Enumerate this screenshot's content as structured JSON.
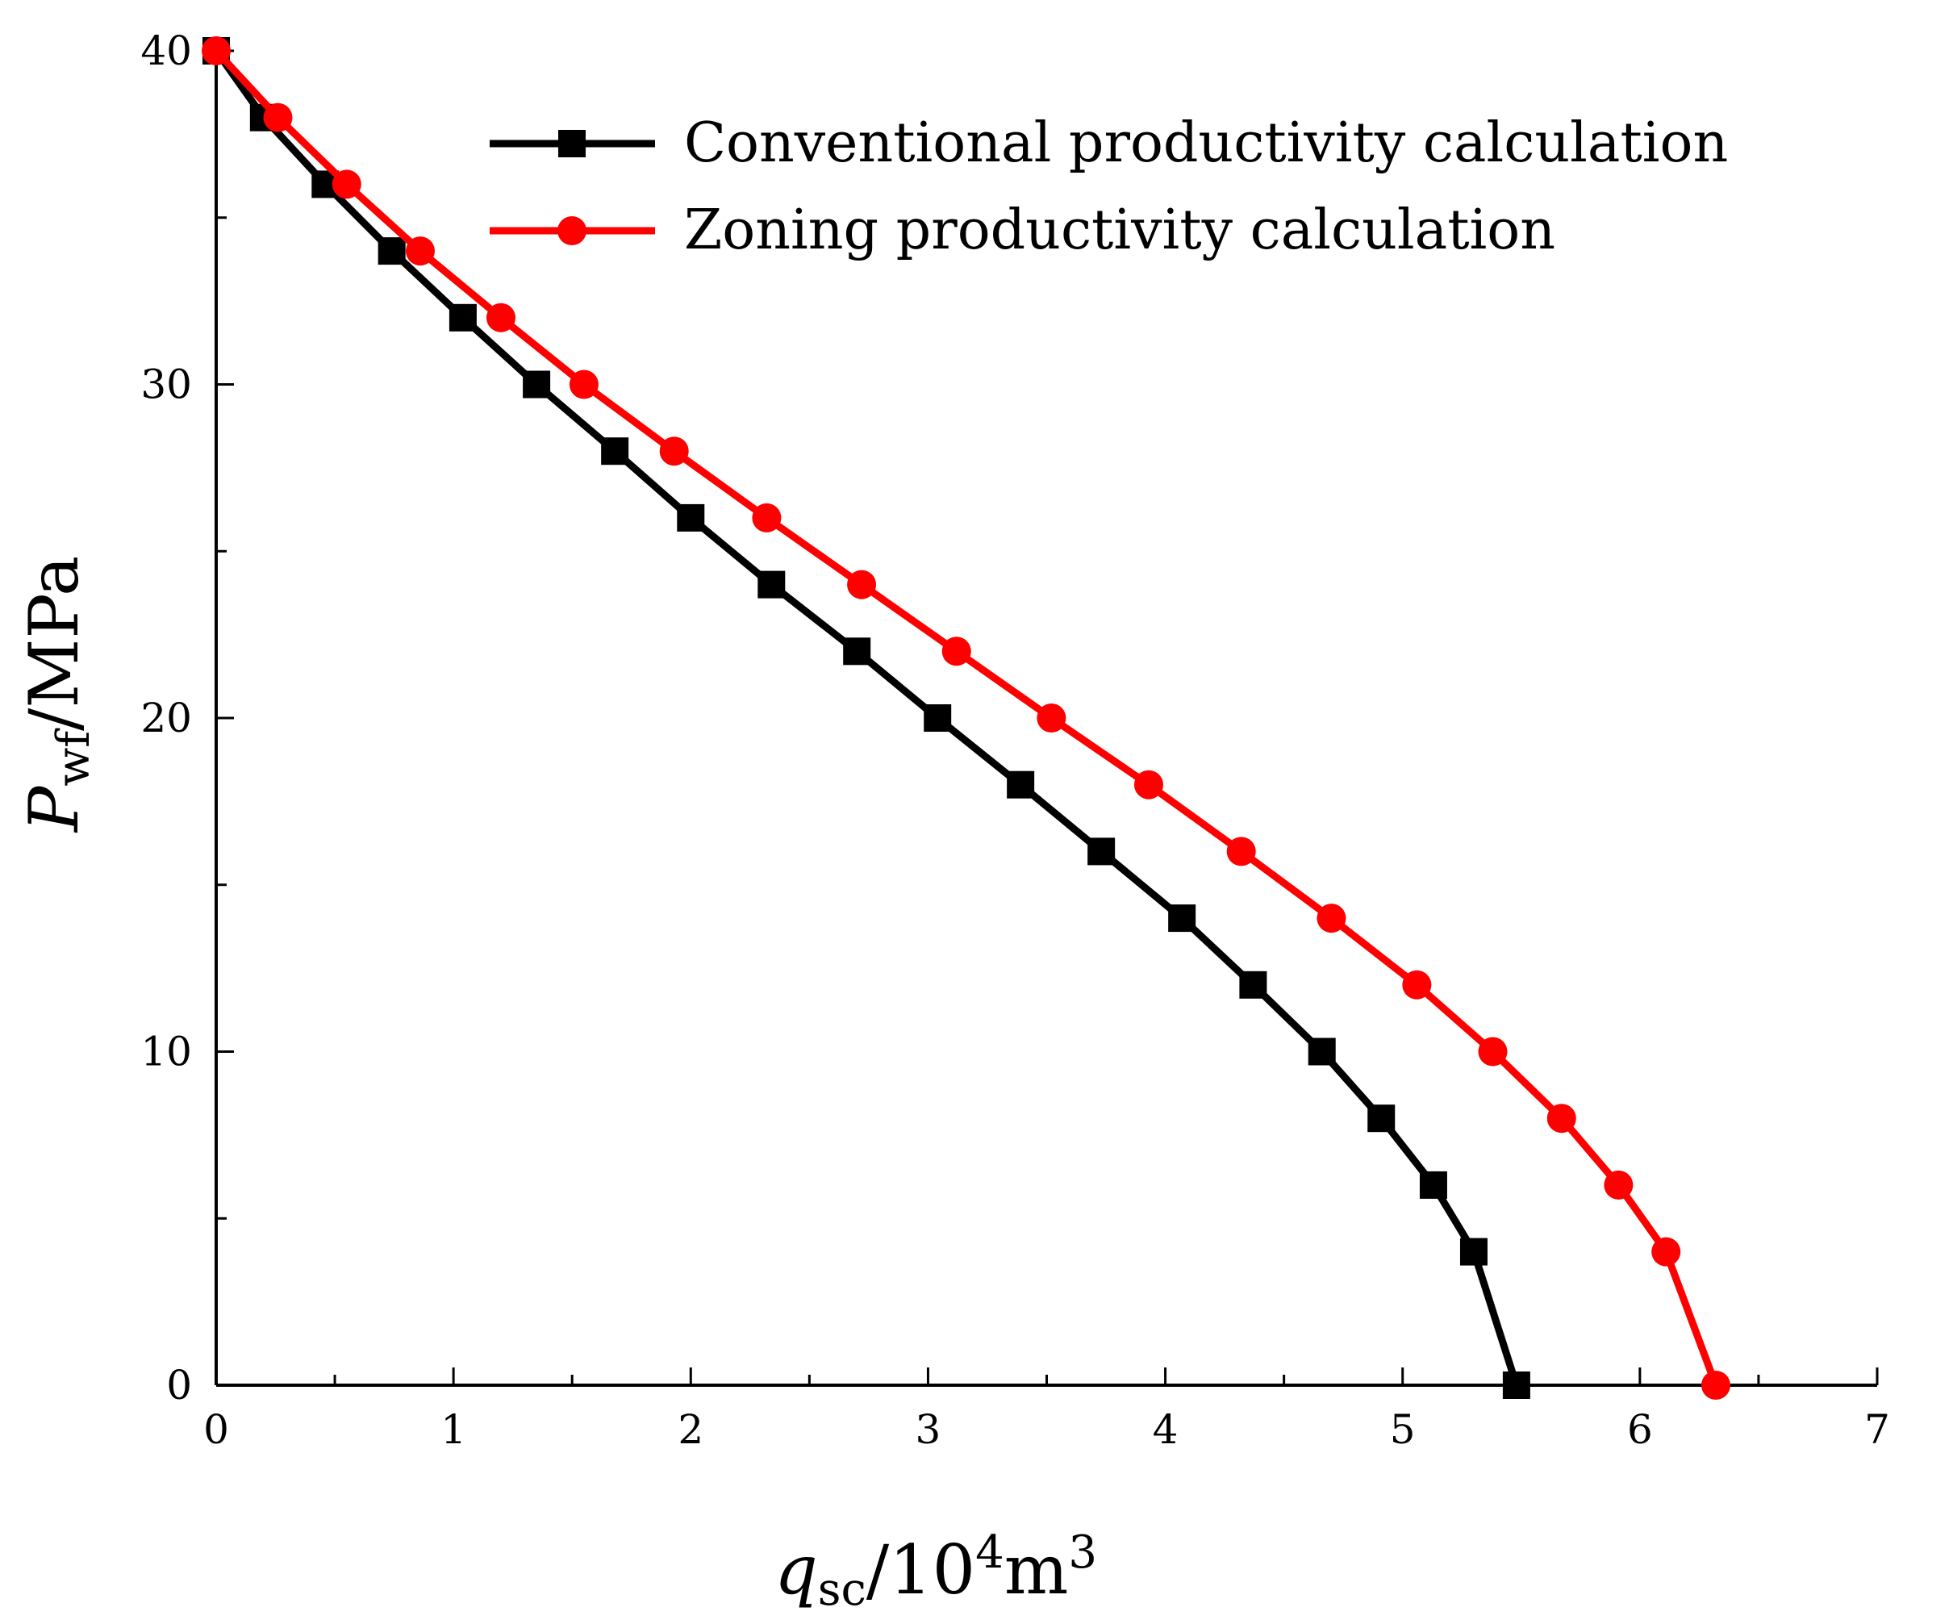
{
  "chart_data": {
    "type": "line",
    "title": "",
    "xlabel": {
      "main": "q",
      "sub": "sc",
      "rest": "/10",
      "sup1": "4",
      "rest2": "m",
      "sup2": "3"
    },
    "ylabel": {
      "main": "P",
      "sub": "wf",
      "rest": "/MPa"
    },
    "xlim": [
      0,
      7
    ],
    "ylim": [
      0,
      40
    ],
    "xticks": [
      "0",
      "1",
      "2",
      "3",
      "4",
      "5",
      "6",
      "7"
    ],
    "yticks": [
      "0",
      "10",
      "20",
      "30",
      "40"
    ],
    "x_minor_step": 0.5,
    "y_minor_step": 5,
    "grid": false,
    "legend_position": "top-right",
    "series": [
      {
        "name": "Conventional productivity calculation",
        "color": "#000000",
        "marker": "square",
        "points": [
          [
            0.0,
            40
          ],
          [
            0.2,
            38
          ],
          [
            0.46,
            36
          ],
          [
            0.74,
            34
          ],
          [
            1.04,
            32
          ],
          [
            1.35,
            30
          ],
          [
            1.68,
            28
          ],
          [
            2.0,
            26
          ],
          [
            2.34,
            24
          ],
          [
            2.7,
            22
          ],
          [
            3.04,
            20
          ],
          [
            3.39,
            18
          ],
          [
            3.73,
            16
          ],
          [
            4.07,
            14
          ],
          [
            4.37,
            12
          ],
          [
            4.66,
            10
          ],
          [
            4.91,
            8
          ],
          [
            5.13,
            6
          ],
          [
            5.3,
            4
          ],
          [
            5.48,
            0
          ]
        ]
      },
      {
        "name": "Zoning productivity calculation",
        "color": "#ff0000",
        "marker": "circle",
        "points": [
          [
            0.0,
            40
          ],
          [
            0.26,
            38
          ],
          [
            0.55,
            36
          ],
          [
            0.86,
            34
          ],
          [
            1.2,
            32
          ],
          [
            1.55,
            30
          ],
          [
            1.93,
            28
          ],
          [
            2.32,
            26
          ],
          [
            2.72,
            24
          ],
          [
            3.12,
            22
          ],
          [
            3.52,
            20
          ],
          [
            3.93,
            18
          ],
          [
            4.32,
            16
          ],
          [
            4.7,
            14
          ],
          [
            5.06,
            12
          ],
          [
            5.38,
            10
          ],
          [
            5.67,
            8
          ],
          [
            5.91,
            6
          ],
          [
            6.11,
            4
          ],
          [
            6.32,
            0
          ]
        ]
      }
    ]
  }
}
